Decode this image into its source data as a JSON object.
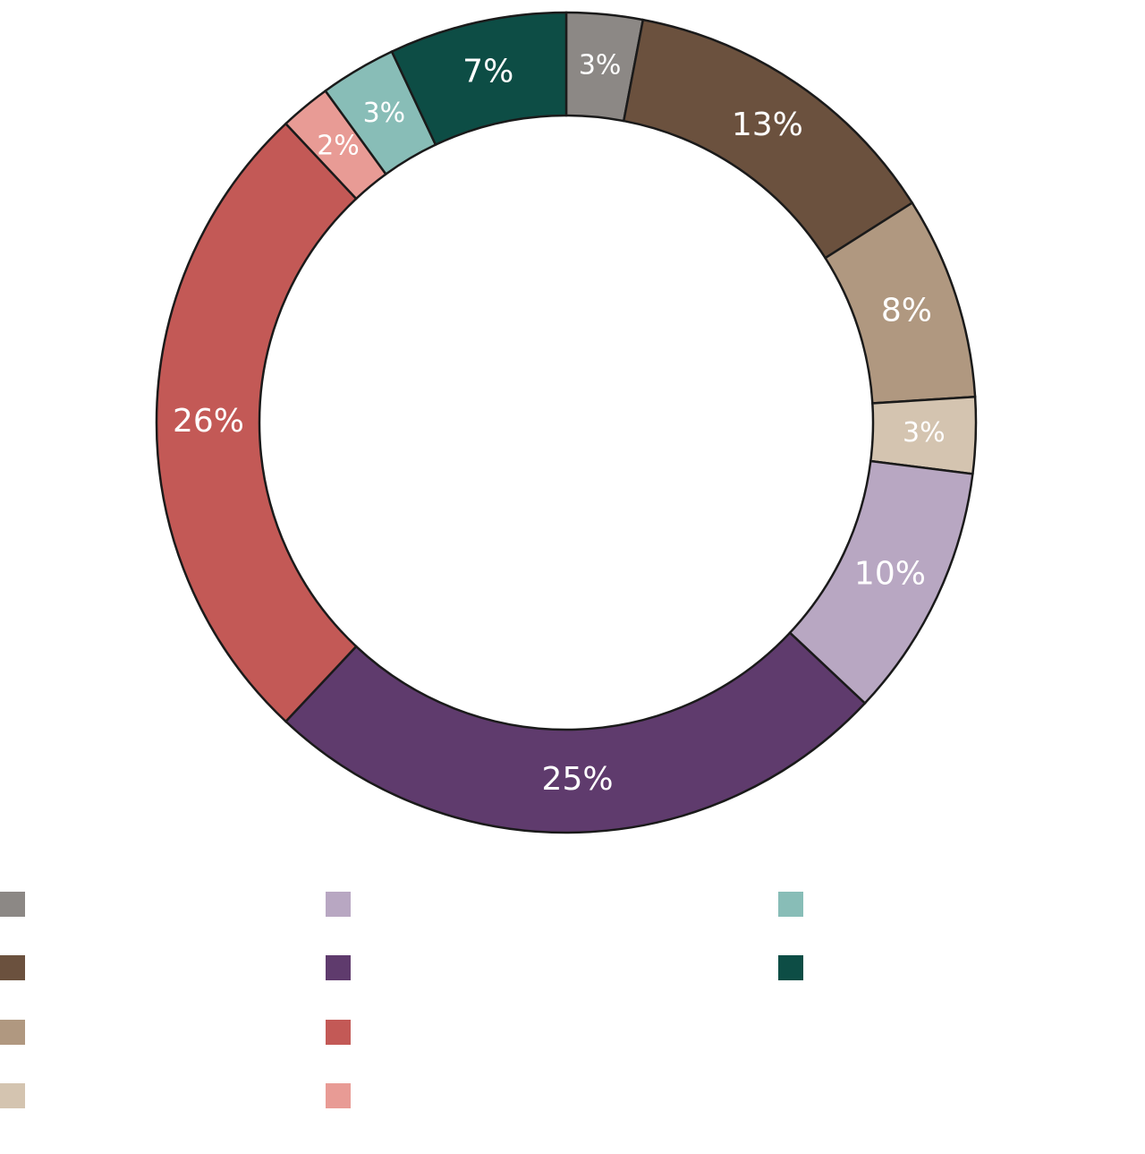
{
  "chart_data": {
    "type": "donut",
    "values": [
      3,
      13,
      8,
      3,
      10,
      25,
      26,
      2,
      3,
      7
    ],
    "value_labels": [
      "3%",
      "13%",
      "8%",
      "3%",
      "10%",
      "25%",
      "26%",
      "2%",
      "3%",
      "7%"
    ],
    "colors": [
      "#8c8885",
      "#6b513e",
      "#b09880",
      "#d4c4b0",
      "#b8a7c2",
      "#5f3b6d",
      "#c35956",
      "#e89b95",
      "#88bdb7",
      "#0d4d45"
    ],
    "legend": "bottom"
  }
}
